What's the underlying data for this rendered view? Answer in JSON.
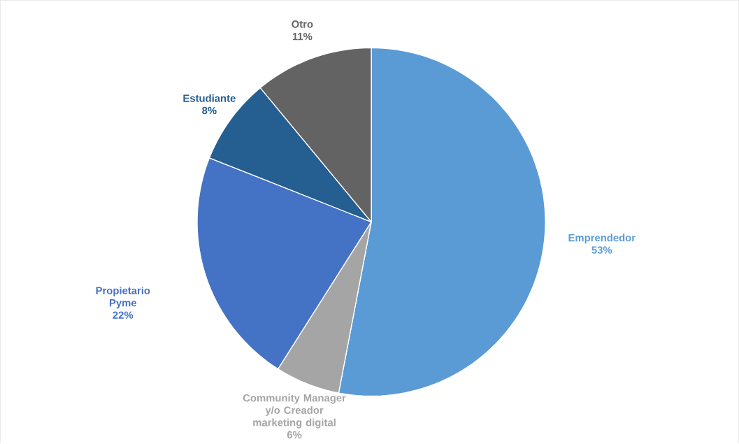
{
  "chart_data": {
    "type": "pie",
    "categories": [
      "Emprendedor",
      "Community Manager y/o Creador marketing digital",
      "Propietario Pyme",
      "Estudiante",
      "Otro"
    ],
    "values": [
      53,
      6,
      22,
      8,
      11
    ],
    "colors": [
      "#5b9bd5",
      "#a5a5a5",
      "#4472c4",
      "#255e91",
      "#636363"
    ],
    "value_labels": [
      "53%",
      "6%",
      "22%",
      "8%",
      "11%"
    ]
  }
}
